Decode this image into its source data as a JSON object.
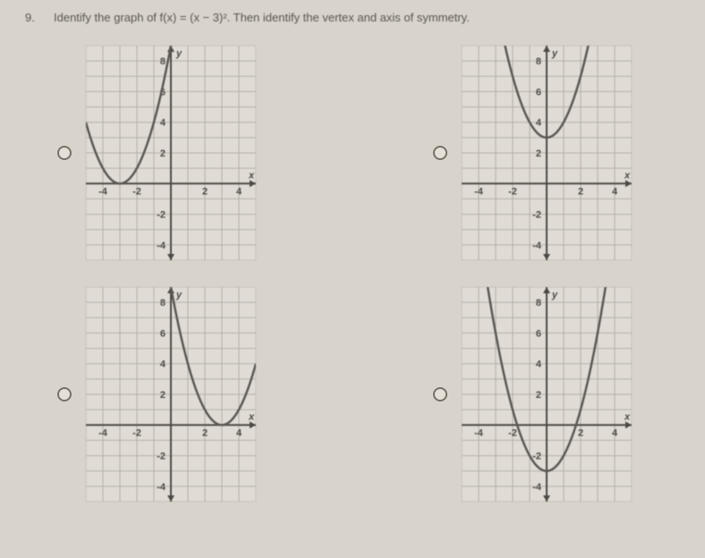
{
  "question_number": "9.",
  "question_text": "Identify the graph of f(x) = (x − 3)². Then identify the vertex and axis of symmetry.",
  "axis_label_x": "x",
  "axis_label_y": "y",
  "x_ticks": [
    "-4",
    "-2",
    "2",
    "4"
  ],
  "y_ticks_upper": [
    "2",
    "4",
    "6",
    "8"
  ],
  "y_ticks_lower": [
    "-2",
    "-4"
  ],
  "charts": [
    {
      "type": "parabola",
      "vertex_x": -3,
      "vertex_y": 0,
      "direction": "up",
      "xlim": [
        -5,
        5
      ],
      "ylim": [
        -5,
        9
      ],
      "grid_color": "#b8b4ac",
      "axis_color": "#484440",
      "curve_color": "#585450",
      "curve_width": 2.5,
      "background_color": "#e8e4dc"
    },
    {
      "type": "parabola",
      "vertex_x": 0,
      "vertex_y": 3,
      "direction": "up",
      "xlim": [
        -5,
        5
      ],
      "ylim": [
        -5,
        9
      ],
      "grid_color": "#b8b4ac",
      "axis_color": "#484440",
      "curve_color": "#585450",
      "curve_width": 2.5,
      "background_color": "#e8e4dc"
    },
    {
      "type": "parabola",
      "vertex_x": 3,
      "vertex_y": 0,
      "direction": "up",
      "xlim": [
        -5,
        5
      ],
      "ylim": [
        -5,
        9
      ],
      "grid_color": "#b8b4ac",
      "axis_color": "#484440",
      "curve_color": "#585450",
      "curve_width": 2.5,
      "background_color": "#e8e4dc"
    },
    {
      "type": "parabola",
      "vertex_x": 0,
      "vertex_y": -3,
      "direction": "up",
      "xlim": [
        -5,
        5
      ],
      "ylim": [
        -5,
        9
      ],
      "grid_color": "#b8b4ac",
      "axis_color": "#484440",
      "curve_color": "#585450",
      "curve_width": 2.5,
      "background_color": "#e8e4dc"
    }
  ]
}
